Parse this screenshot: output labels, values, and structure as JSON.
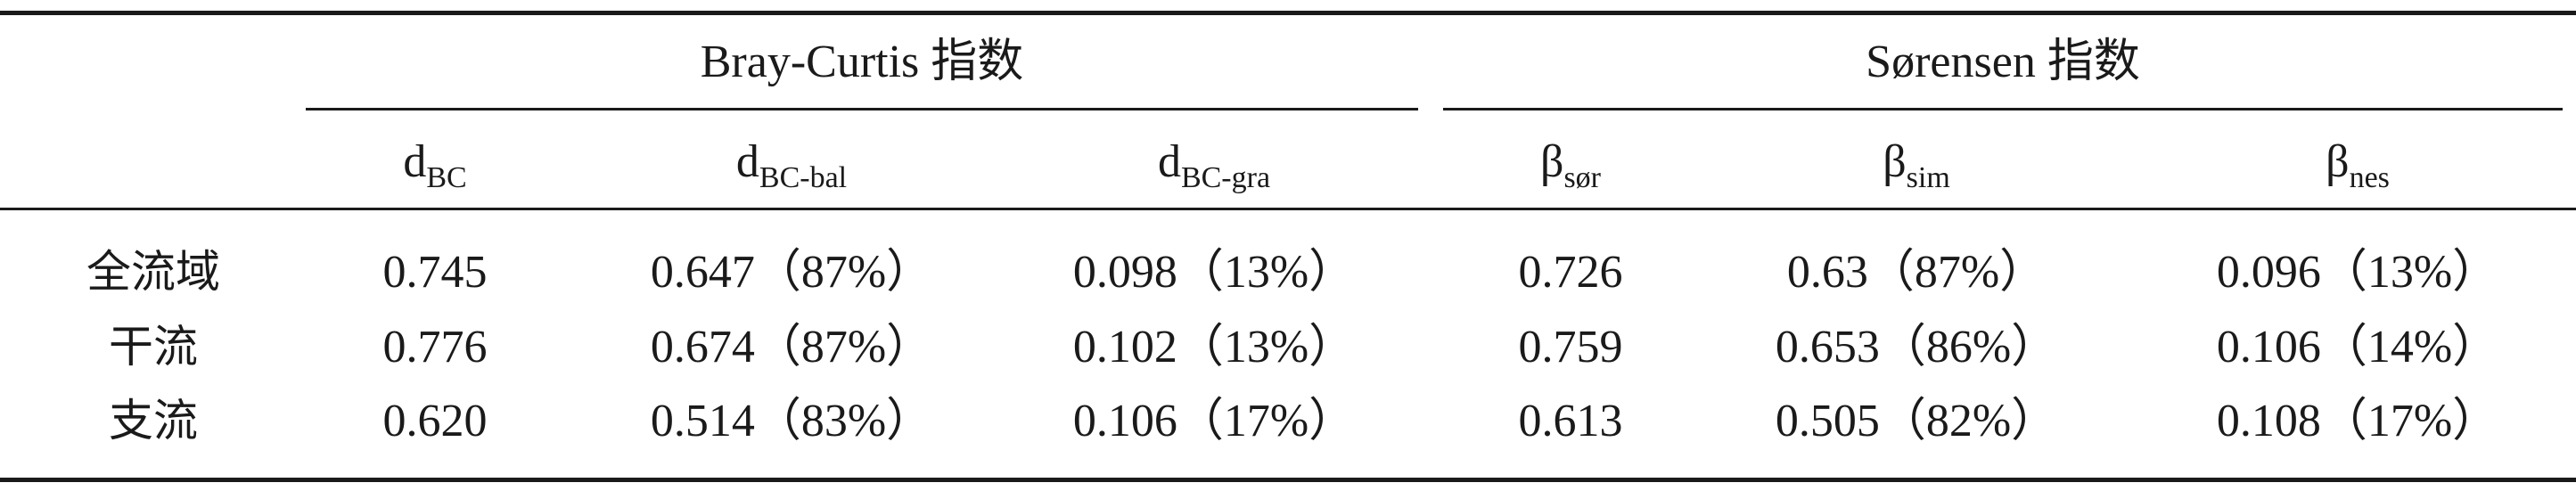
{
  "table": {
    "group_headers": [
      {
        "label": "Bray-Curtis 指数"
      },
      {
        "label": "Sørensen 指数"
      }
    ],
    "sub_headers": [
      {
        "base": "d",
        "sub": "BC"
      },
      {
        "base": "d",
        "sub": "BC-bal"
      },
      {
        "base": "d",
        "sub": "BC-gra"
      },
      {
        "base": "β",
        "sub": "sør"
      },
      {
        "base": "β",
        "sub": "sim"
      },
      {
        "base": "β",
        "sub": "nes"
      }
    ],
    "rows": [
      {
        "label": "全流域",
        "cells": [
          "0.745",
          "0.647（87%）",
          "0.098（13%）",
          "0.726",
          "0.63（87%）",
          "0.096（13%）"
        ]
      },
      {
        "label": "干流",
        "cells": [
          "0.776",
          "0.674（87%）",
          "0.102（13%）",
          "0.759",
          "0.653（86%）",
          "0.106（14%）"
        ]
      },
      {
        "label": "支流",
        "cells": [
          "0.620",
          "0.514（83%）",
          "0.106（17%）",
          "0.613",
          "0.505（82%）",
          "0.108（17%）"
        ]
      }
    ]
  }
}
